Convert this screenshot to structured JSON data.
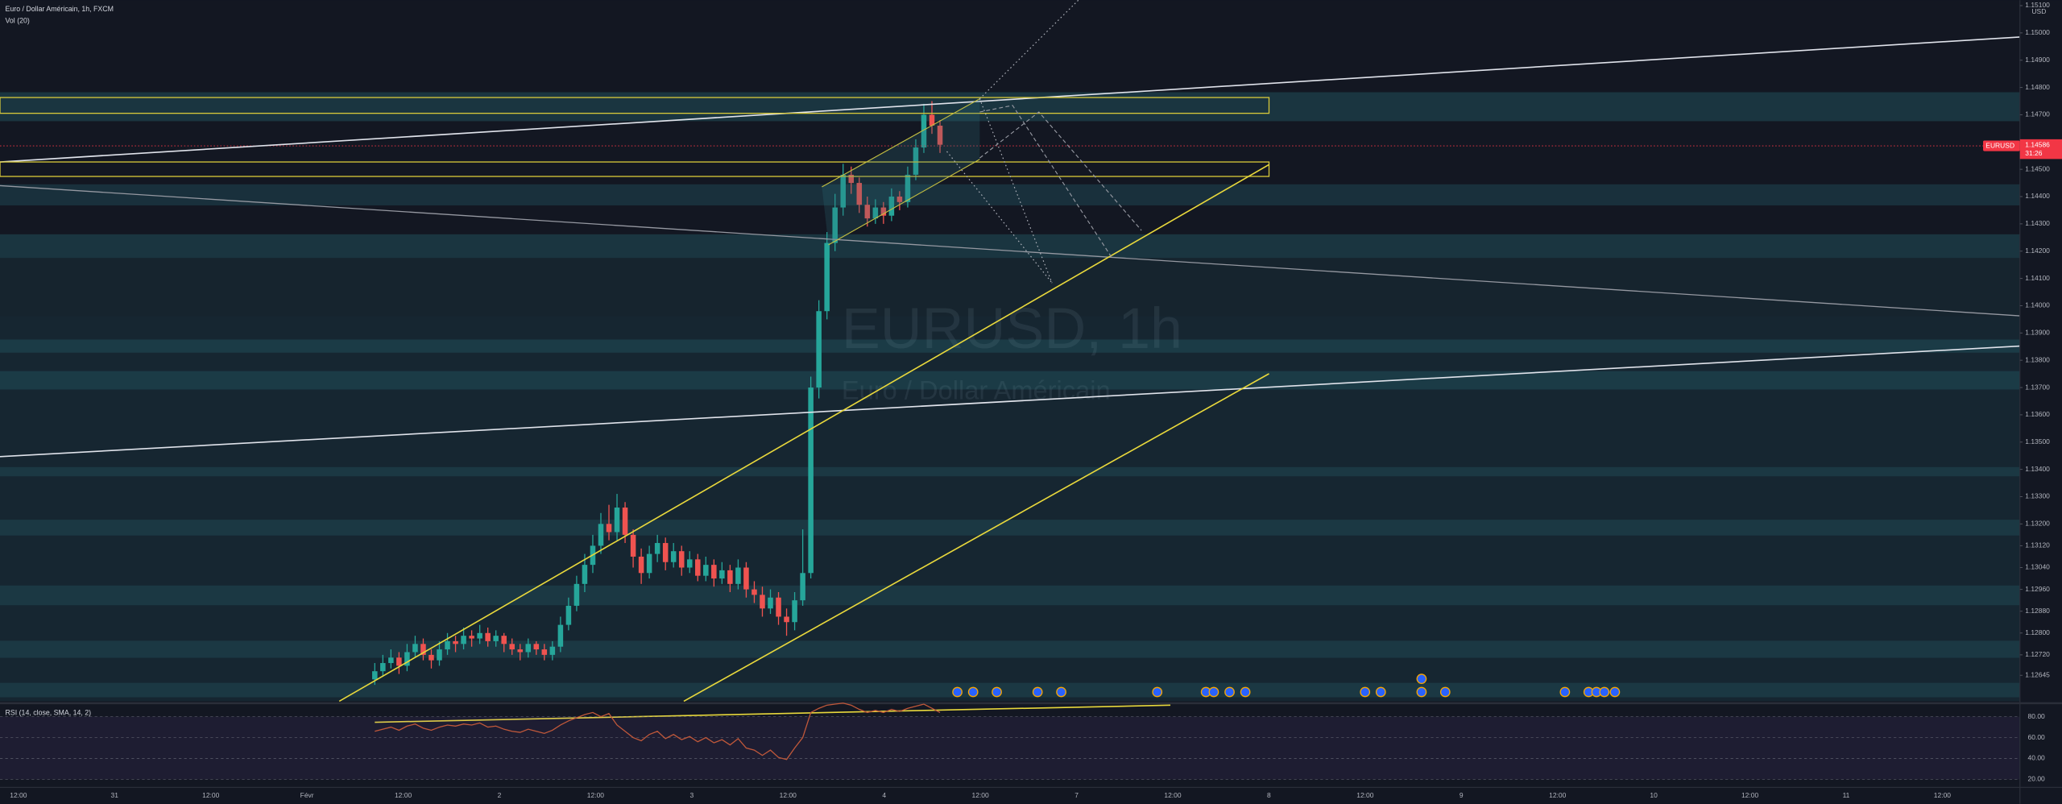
{
  "chart_data": [
    {
      "type": "candlestick",
      "title": "Euro / Dollar Américain, 1h, FXCM",
      "subtitle": "Vol (20)",
      "currency": "USD",
      "watermark": "EURUSD, 1h",
      "watermark_subtitle": "Euro / Dollar Américain",
      "symbol": "EURUSD",
      "last_price": {
        "value": 1.14586,
        "label": "1.14586"
      },
      "countdown": "31:26",
      "up_color": "#26a69a",
      "down_color": "#ef5350",
      "x_tick_labels": [
        "12:00",
        "31",
        "12:00",
        "Févr",
        "12:00",
        "2",
        "12:00",
        "3",
        "12:00",
        "4",
        "12:00",
        "7",
        "12:00",
        "8",
        "12:00",
        "9",
        "12:00",
        "10",
        "12:00",
        "11",
        "12:00"
      ],
      "open": [
        1.1263,
        1.1266,
        1.1269,
        1.1271,
        1.1268,
        1.1273,
        1.1276,
        1.1272,
        1.127,
        1.1274,
        1.1277,
        1.1276,
        1.1279,
        1.1278,
        1.128,
        1.1277,
        1.1279,
        1.1276,
        1.1274,
        1.1273,
        1.1276,
        1.1274,
        1.1272,
        1.1275,
        1.1283,
        1.129,
        1.1298,
        1.1305,
        1.1312,
        1.132,
        1.1317,
        1.1326,
        1.1316,
        1.1308,
        1.1302,
        1.1309,
        1.1313,
        1.1306,
        1.131,
        1.1304,
        1.1307,
        1.1301,
        1.1305,
        1.13,
        1.1303,
        1.1298,
        1.1304,
        1.1296,
        1.1294,
        1.1289,
        1.1293,
        1.1286,
        1.1284,
        1.1292,
        1.1302,
        1.137,
        1.1398,
        1.1423,
        1.1436,
        1.1448,
        1.1445,
        1.1437,
        1.1432,
        1.1436,
        1.1433,
        1.144,
        1.1438,
        1.1448,
        1.1458,
        1.147,
        1.1466
      ],
      "high": [
        1.1269,
        1.1272,
        1.1274,
        1.1273,
        1.1276,
        1.1279,
        1.1278,
        1.1274,
        1.1277,
        1.128,
        1.1279,
        1.1282,
        1.1281,
        1.1283,
        1.1282,
        1.1281,
        1.128,
        1.1278,
        1.1276,
        1.1278,
        1.1277,
        1.1276,
        1.1277,
        1.1286,
        1.1293,
        1.1301,
        1.1309,
        1.1316,
        1.1324,
        1.1327,
        1.1331,
        1.1328,
        1.1318,
        1.1311,
        1.1312,
        1.1316,
        1.1315,
        1.1313,
        1.1312,
        1.131,
        1.1309,
        1.1308,
        1.1307,
        1.1306,
        1.1305,
        1.1307,
        1.1306,
        1.1299,
        1.1297,
        1.1296,
        1.1295,
        1.1289,
        1.1295,
        1.1318,
        1.1374,
        1.1402,
        1.1427,
        1.1441,
        1.1452,
        1.1451,
        1.1447,
        1.144,
        1.1439,
        1.1438,
        1.1443,
        1.1442,
        1.1451,
        1.1461,
        1.1474,
        1.1475,
        1.1468
      ],
      "low": [
        1.1261,
        1.1264,
        1.1267,
        1.1265,
        1.1266,
        1.1271,
        1.127,
        1.1267,
        1.1268,
        1.1272,
        1.1273,
        1.1274,
        1.1275,
        1.1276,
        1.1275,
        1.1275,
        1.1273,
        1.1272,
        1.127,
        1.1271,
        1.1272,
        1.127,
        1.127,
        1.1273,
        1.1281,
        1.1288,
        1.1295,
        1.1302,
        1.1309,
        1.1314,
        1.1314,
        1.1313,
        1.1304,
        1.1298,
        1.13,
        1.1306,
        1.1303,
        1.1304,
        1.1301,
        1.1302,
        1.1299,
        1.1299,
        1.1297,
        1.1298,
        1.1295,
        1.1296,
        1.1293,
        1.1291,
        1.1286,
        1.1287,
        1.1283,
        1.1279,
        1.1281,
        1.129,
        1.13,
        1.1366,
        1.1395,
        1.142,
        1.1433,
        1.1441,
        1.1434,
        1.1429,
        1.143,
        1.143,
        1.1431,
        1.1435,
        1.1436,
        1.1446,
        1.1456,
        1.1463,
        1.1456
      ],
      "close": [
        1.1266,
        1.1269,
        1.1271,
        1.1268,
        1.1273,
        1.1276,
        1.1272,
        1.127,
        1.1274,
        1.1277,
        1.1276,
        1.1279,
        1.1278,
        1.128,
        1.1277,
        1.1279,
        1.1276,
        1.1274,
        1.1273,
        1.1276,
        1.1274,
        1.1272,
        1.1275,
        1.1283,
        1.129,
        1.1298,
        1.1305,
        1.1312,
        1.132,
        1.1317,
        1.1326,
        1.1316,
        1.1308,
        1.1302,
        1.1309,
        1.1313,
        1.1306,
        1.131,
        1.1304,
        1.1307,
        1.1301,
        1.1305,
        1.13,
        1.1303,
        1.1298,
        1.1304,
        1.1296,
        1.1294,
        1.1289,
        1.1293,
        1.1286,
        1.1284,
        1.1292,
        1.1302,
        1.137,
        1.1398,
        1.1423,
        1.1436,
        1.1448,
        1.1445,
        1.1437,
        1.1432,
        1.1436,
        1.1433,
        1.144,
        1.1438,
        1.1448,
        1.1458,
        1.147,
        1.1466,
        1.1459
      ],
      "ylim": [
        1.1255,
        1.1512
      ],
      "yticks": [
        {
          "value": 1.151,
          "label": "1.15100"
        },
        {
          "value": 1.15,
          "label": "1.15000"
        },
        {
          "value": 1.149,
          "label": "1.14900"
        },
        {
          "value": 1.148,
          "label": "1.14800"
        },
        {
          "value": 1.147,
          "label": "1.14700"
        },
        {
          "value": 1.145,
          "label": "1.14500"
        },
        {
          "value": 1.144,
          "label": "1.14400"
        },
        {
          "value": 1.143,
          "label": "1.14300"
        },
        {
          "value": 1.142,
          "label": "1.14200"
        },
        {
          "value": 1.141,
          "label": "1.14100"
        },
        {
          "value": 1.14,
          "label": "1.14000"
        },
        {
          "value": 1.139,
          "label": "1.13900"
        },
        {
          "value": 1.138,
          "label": "1.13800"
        },
        {
          "value": 1.137,
          "label": "1.13700"
        },
        {
          "value": 1.136,
          "label": "1.13600"
        },
        {
          "value": 1.135,
          "label": "1.13500"
        },
        {
          "value": 1.134,
          "label": "1.13400"
        },
        {
          "value": 1.133,
          "label": "1.13300"
        },
        {
          "value": 1.132,
          "label": "1.13200"
        },
        {
          "value": 1.1312,
          "label": "1.13120"
        },
        {
          "value": 1.1304,
          "label": "1.13040"
        },
        {
          "value": 1.1296,
          "label": "1.12960"
        },
        {
          "value": 1.1288,
          "label": "1.12880"
        },
        {
          "value": 1.128,
          "label": "1.12800"
        },
        {
          "value": 1.1272,
          "label": "1.12720"
        },
        {
          "value": 1.12645,
          "label": "1.12645"
        }
      ]
    },
    {
      "type": "line",
      "title": "RSI (14, close, SMA, 14, 2)",
      "color": "#c0583a",
      "values": [
        66,
        68,
        70,
        67,
        71,
        73,
        69,
        67,
        70,
        72,
        71,
        73,
        72,
        74,
        70,
        71,
        68,
        66,
        65,
        68,
        66,
        64,
        67,
        72,
        76,
        79,
        82,
        84,
        80,
        83,
        72,
        66,
        60,
        57,
        63,
        66,
        59,
        63,
        58,
        61,
        56,
        60,
        55,
        58,
        53,
        59,
        50,
        48,
        43,
        48,
        41,
        39,
        50,
        60,
        84,
        88,
        91,
        92,
        93,
        91,
        87,
        84,
        86,
        84,
        87,
        85,
        88,
        90,
        92,
        88,
        84
      ],
      "ylim": [
        13,
        91
      ],
      "yticks": [
        {
          "value": 80,
          "label": "80.00"
        },
        {
          "value": 60,
          "label": "60.00"
        },
        {
          "value": 40,
          "label": "40.00"
        },
        {
          "value": 20,
          "label": "20.00"
        }
      ]
    }
  ]
}
